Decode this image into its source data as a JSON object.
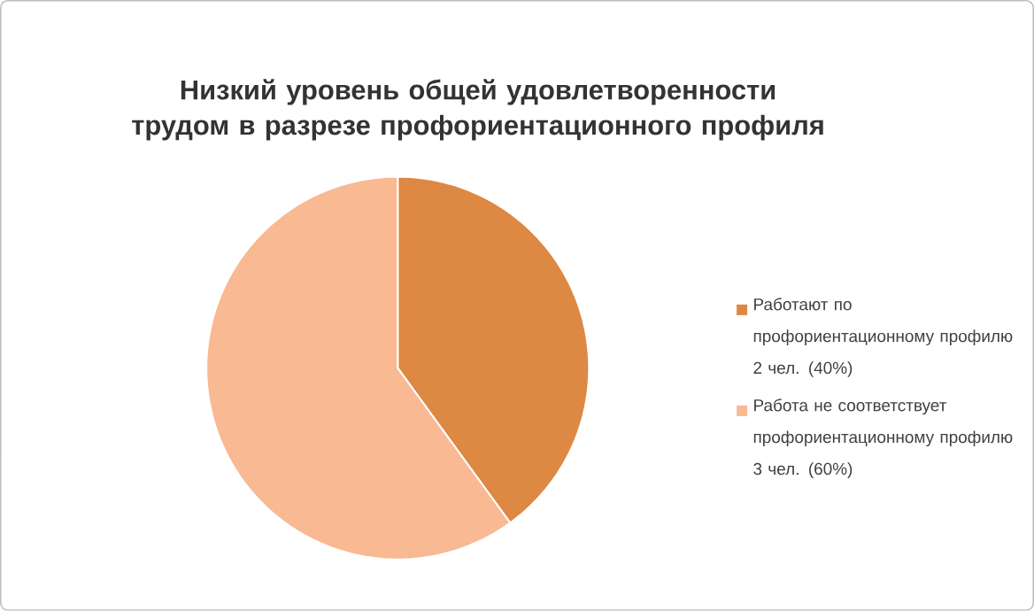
{
  "chart_data": {
    "type": "pie",
    "title": "Низкий уровень общей удовлетворенности трудом в разрезе профориентационного профиля",
    "categories": [
      "Работают по профориентационному профилю 2 чел. (40%)",
      "Работа не соответствует профориентационному профилю 3 чел. (60%)"
    ],
    "values": [
      40,
      60
    ],
    "colors": [
      "#dd8843",
      "#f8b993"
    ],
    "legend": "right"
  }
}
